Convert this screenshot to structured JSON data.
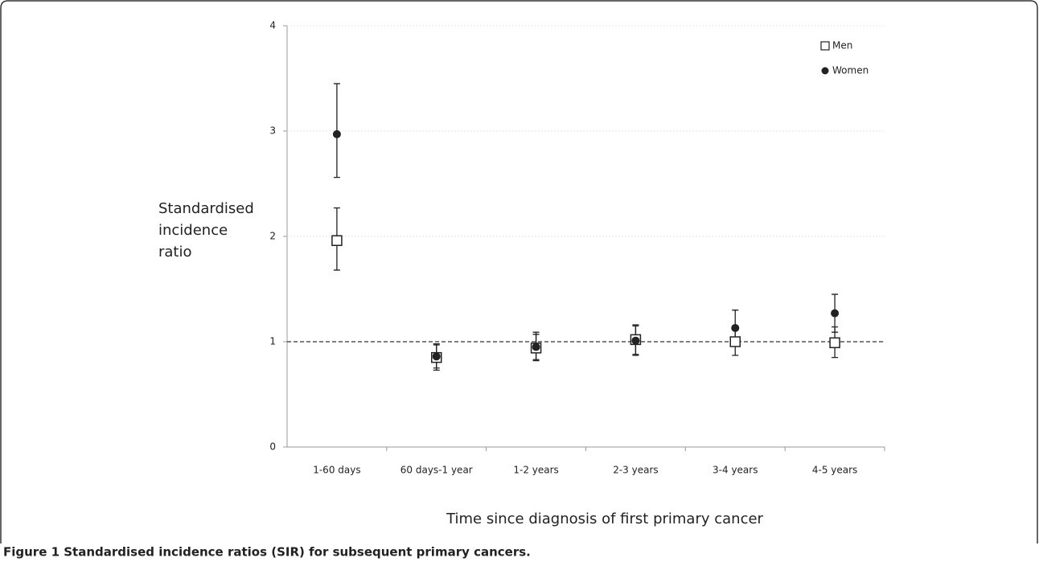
{
  "chart_data": {
    "type": "errorbar",
    "categories": [
      "1-60 days",
      "60 days-1 year",
      "1-2 years",
      "2-3 years",
      "3-4 years",
      "4-5 years"
    ],
    "series": [
      {
        "name": "Men",
        "color": "#222222",
        "marker": "open-square",
        "values": [
          1.96,
          0.85,
          0.94,
          1.02,
          1.0,
          0.99
        ],
        "lower": [
          1.68,
          0.75,
          0.83,
          0.88,
          0.87,
          0.85
        ],
        "upper": [
          2.27,
          0.97,
          1.07,
          1.15,
          1.14,
          1.14
        ]
      },
      {
        "name": "Women",
        "color": "#222222",
        "marker": "filled-circle",
        "values": [
          2.97,
          0.86,
          0.95,
          1.01,
          1.13,
          1.27
        ],
        "lower": [
          2.56,
          0.73,
          0.82,
          0.87,
          0.97,
          1.09
        ],
        "upper": [
          3.45,
          0.98,
          1.09,
          1.16,
          1.3,
          1.45
        ]
      }
    ],
    "ylim": [
      0,
      4
    ],
    "yticks": [
      0,
      1,
      2,
      3,
      4
    ],
    "reference_line": 1,
    "ylabel_lines": [
      "Standardised",
      "incidence",
      "ratio"
    ],
    "xlabel": "Time since diagnosis of first primary cancer",
    "legend": "top-right",
    "grid": true
  },
  "caption": "Figure 1 Standardised incidence ratios (SIR) for subsequent primary cancers."
}
